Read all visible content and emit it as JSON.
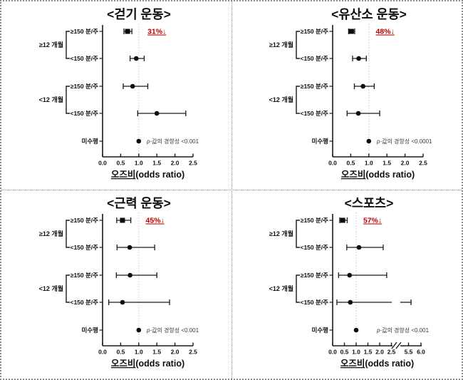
{
  "figure": {
    "background": "#ffffff",
    "border_color": "#8c8c8c",
    "axis_color": "#1a1a1a",
    "ref_line_color": "#c8c8c8",
    "annotation_color": "#c00000",
    "p_trend_color": "#3c3c3c"
  },
  "chart_data": [
    {
      "type": "scatter",
      "subtype": "forest-plot",
      "title": "<걷기 운동>",
      "xlabel": "오즈비(odds ratio)",
      "xlabel_underlined_part": "오즈비",
      "xlabel_rest": "(odds ratio)",
      "x_ticks": [
        0.0,
        0.5,
        1.0,
        1.5,
        2.0,
        2.5
      ],
      "xlim": [
        0,
        2.5
      ],
      "ref_line": 1.0,
      "grid": false,
      "legend": null,
      "annotation": {
        "text": "31%↓",
        "color": "#c00000",
        "x": 1.5
      },
      "p_trend": "p-값의 경향성 <0.001",
      "groups": [
        {
          "label": "≥12 개월",
          "span": [
            0,
            1
          ]
        },
        {
          "label": "<12 개월",
          "span": [
            2,
            3
          ]
        }
      ],
      "rows": [
        {
          "label": "≥150 분/주",
          "or": 0.69,
          "ci": [
            0.59,
            0.81
          ],
          "marker": "square"
        },
        {
          "label": "<150 분/주",
          "or": 0.93,
          "ci": [
            0.76,
            1.15
          ],
          "marker": "circle"
        },
        {
          "label": "≥150 분/주",
          "or": 0.83,
          "ci": [
            0.57,
            1.25
          ],
          "marker": "circle"
        },
        {
          "label": "<150 분/주",
          "or": 1.5,
          "ci": [
            0.97,
            2.3
          ],
          "marker": "circle"
        },
        {
          "label": "미수행",
          "or": 1.0,
          "ci": null,
          "marker": "circle"
        }
      ]
    },
    {
      "type": "scatter",
      "subtype": "forest-plot",
      "title": "<유산소 운동>",
      "xlabel": "오즈비(odds ratio)",
      "xlabel_underlined_part": "오즈비",
      "xlabel_rest": "(odds ratio)",
      "x_ticks": [
        0.0,
        0.5,
        1.0,
        1.5,
        2.0,
        2.5
      ],
      "xlim": [
        0,
        2.5
      ],
      "ref_line": 1.0,
      "grid": false,
      "legend": null,
      "annotation": {
        "text": "48%↓",
        "color": "#c00000",
        "x": 1.45
      },
      "p_trend": "p-값의 경향성 <0.0001",
      "groups": [
        {
          "label": "≥12 개월",
          "span": [
            0,
            1
          ]
        },
        {
          "label": "<12 개월",
          "span": [
            2,
            3
          ]
        }
      ],
      "rows": [
        {
          "label": "≥150 분/주",
          "or": 0.52,
          "ci": [
            0.44,
            0.61
          ],
          "marker": "square"
        },
        {
          "label": "<150 분/주",
          "or": 0.72,
          "ci": [
            0.55,
            0.93
          ],
          "marker": "circle"
        },
        {
          "label": "≥150 분/주",
          "or": 0.84,
          "ci": [
            0.6,
            1.15
          ],
          "marker": "circle"
        },
        {
          "label": "<150 분/주",
          "or": 0.71,
          "ci": [
            0.4,
            1.3
          ],
          "marker": "circle"
        },
        {
          "label": "미수행",
          "or": 1.0,
          "ci": null,
          "marker": "circle"
        }
      ]
    },
    {
      "type": "scatter",
      "subtype": "forest-plot",
      "title": "<근력 운동>",
      "xlabel": "오즈비(odds ratio)",
      "xlabel_underlined_part": "오즈비",
      "xlabel_rest": "(odds ratio)",
      "x_ticks": [
        0.0,
        0.5,
        1.0,
        1.5,
        2.0,
        2.5
      ],
      "xlim": [
        0,
        2.5
      ],
      "ref_line": 1.0,
      "grid": false,
      "legend": null,
      "annotation": {
        "text": "45%↓",
        "color": "#c00000",
        "x": 1.45
      },
      "p_trend": "p-값의 경향성 <0.001",
      "groups": [
        {
          "label": "≥12 개월",
          "span": [
            0,
            1
          ]
        },
        {
          "label": "<12 개월",
          "span": [
            2,
            3
          ]
        }
      ],
      "rows": [
        {
          "label": "≥150 분/주",
          "or": 0.55,
          "ci": [
            0.39,
            0.78
          ],
          "marker": "square"
        },
        {
          "label": "<150 분/주",
          "or": 0.75,
          "ci": [
            0.4,
            1.44
          ],
          "marker": "circle"
        },
        {
          "label": "≥150 분/주",
          "or": 0.76,
          "ci": [
            0.38,
            1.5
          ],
          "marker": "circle"
        },
        {
          "label": "<150 분/주",
          "or": 0.55,
          "ci": [
            0.17,
            1.85
          ],
          "marker": "circle"
        },
        {
          "label": "미수행",
          "or": 1.0,
          "ci": null,
          "marker": "circle"
        }
      ]
    },
    {
      "type": "scatter",
      "subtype": "forest-plot",
      "title": "<스포츠>",
      "xlabel": "오즈비(odds ratio)",
      "xlabel_underlined_part": "오즈비",
      "xlabel_rest": "(odds ratio)",
      "x_ticks": [
        0.0,
        0.5,
        1.0,
        1.5,
        2.0,
        2.5
      ],
      "x_ticks_after_break": [
        5.5,
        6.0
      ],
      "axis_break": {
        "after": 2.5,
        "resume": 5.5
      },
      "xlim": [
        0,
        6.0
      ],
      "ref_line": 1.0,
      "grid": false,
      "legend": null,
      "annotation": {
        "text": "57%↓",
        "color": "#c00000",
        "x": 1.7
      },
      "p_trend": "p-값의 경향성 <0.001",
      "groups": [
        {
          "label": "≥12 개월",
          "span": [
            0,
            1
          ]
        },
        {
          "label": "<12 개월",
          "span": [
            2,
            3
          ]
        }
      ],
      "rows": [
        {
          "label": "≥150 분/주",
          "or": 0.43,
          "ci": [
            0.3,
            0.62
          ],
          "marker": "square"
        },
        {
          "label": "<150 분/주",
          "or": 1.12,
          "ci": [
            0.6,
            2.15
          ],
          "marker": "circle"
        },
        {
          "label": "≥150 분/주",
          "or": 0.72,
          "ci": [
            0.25,
            2.3
          ],
          "marker": "circle"
        },
        {
          "label": "<150 분/주",
          "or": 0.75,
          "ci": [
            0.18,
            5.6
          ],
          "marker": "circle"
        },
        {
          "label": "미수행",
          "or": 1.0,
          "ci": null,
          "marker": "circle"
        }
      ]
    }
  ]
}
